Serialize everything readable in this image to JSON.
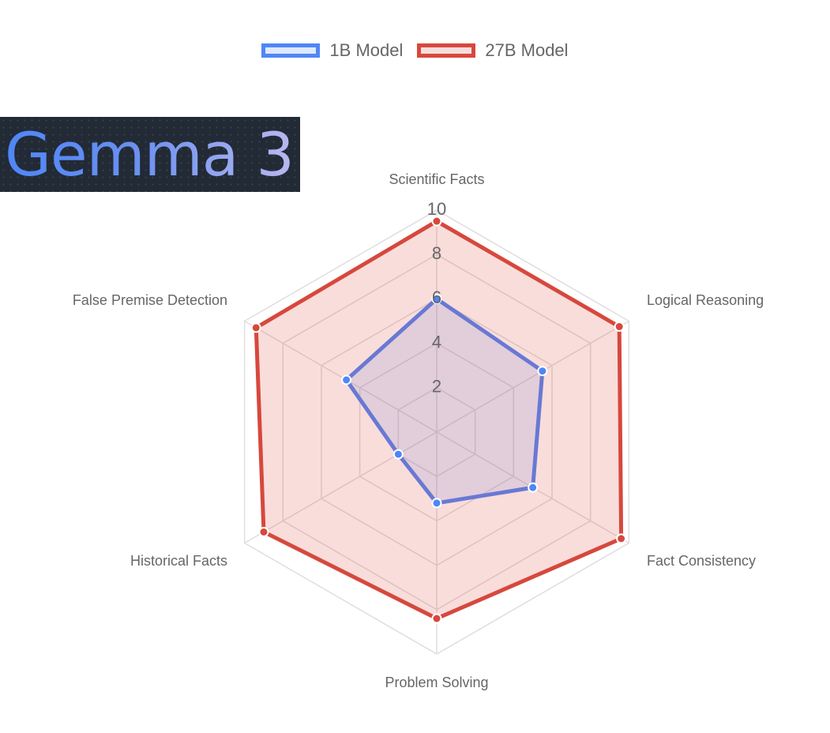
{
  "logo": {
    "text": "Gemma 3"
  },
  "chart_data": {
    "type": "radar",
    "categories": [
      "Scientific Facts",
      "Logical Reasoning",
      "Fact Consistency",
      "Problem Solving",
      "Historical Facts",
      "False Premise Detection"
    ],
    "series": [
      {
        "name": "1B Model",
        "values": [
          6,
          5.5,
          5,
          3.2,
          2,
          4.7
        ],
        "color": "#4f86f7",
        "fill": "rgba(79,134,247,0.16)"
      },
      {
        "name": "27B Model",
        "values": [
          9.5,
          9.5,
          9.6,
          8.4,
          9,
          9.4
        ],
        "color": "#d6483d",
        "fill": "rgba(219,68,55,0.18)"
      }
    ],
    "r_ticks": [
      2,
      4,
      6,
      8,
      10
    ],
    "rlim": [
      0,
      10
    ],
    "grid": true,
    "legend": "top-center"
  }
}
